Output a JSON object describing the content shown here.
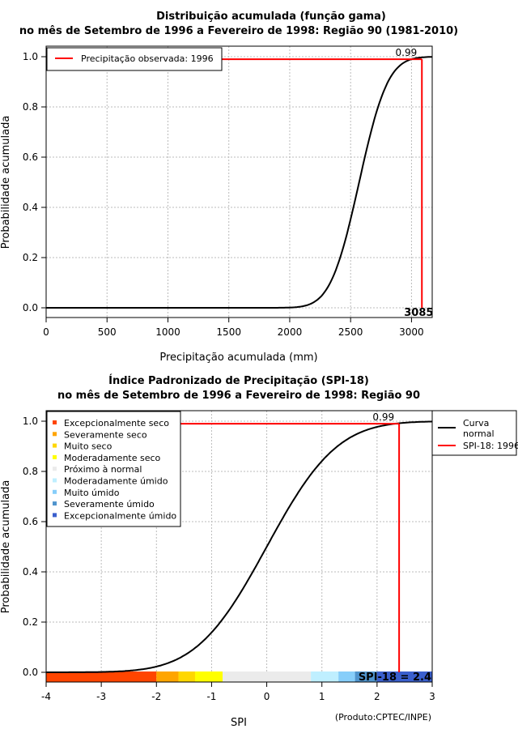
{
  "chart_data": [
    {
      "type": "line",
      "title": [
        "Distribuição acumulada (função gama)",
        "no mês de Setembro de 1996 a Fevereiro de 1998: Região 90 (1981-2010)"
      ],
      "xlabel": "Precipitação acumulada (mm)",
      "ylabel": "Probabilidade acumulada",
      "xlim": [
        0,
        3170
      ],
      "ylim": [
        0,
        1
      ],
      "xticks": [
        0,
        500,
        1000,
        1500,
        2000,
        2500,
        3000
      ],
      "yticks": [
        "0.0",
        "0.2",
        "0.4",
        "0.6",
        "0.8",
        "1.0"
      ],
      "ytick_extra": "0.99",
      "curve": {
        "distribution": "gamma (approx.)",
        "mean": 2570,
        "sd": 185
      },
      "observed": {
        "x": 3085.3,
        "p": 0.99,
        "label": "3085.3"
      },
      "legend": {
        "position": "top-left",
        "entries": [
          {
            "label": "Precipitação observada: 1996",
            "color": "#ff0000"
          }
        ]
      },
      "grid": true
    },
    {
      "type": "line",
      "title": [
        "Índice Padronizado de Precipitação (SPI-18)",
        "no mês de Setembro de 1996 a Fevereiro de 1998: Região 90"
      ],
      "xlabel": "SPI",
      "ylabel": "Probabilidade acumulada",
      "xlim": [
        -4,
        3
      ],
      "ylim": [
        0,
        1
      ],
      "xticks": [
        -4,
        -3,
        -2,
        -1,
        0,
        1,
        2,
        3
      ],
      "yticks": [
        "0.0",
        "0.2",
        "0.4",
        "0.6",
        "0.8",
        "1.0"
      ],
      "ytick_extra": "0.99",
      "curve": {
        "distribution": "normal",
        "mean": 0,
        "sd": 1
      },
      "observed": {
        "x": 2.4,
        "p": 0.99,
        "label": "SPI-18 = 2.4"
      },
      "legend": {
        "position": "outside-top-right",
        "entries": [
          {
            "label": "Curva",
            "label2": "normal",
            "color": "#000000"
          },
          {
            "label": "SPI-18: 1996",
            "color": "#ff0000"
          }
        ]
      },
      "categories": [
        {
          "label": "Excepcionalmente seco",
          "from": -4,
          "to": -2,
          "color": "#ff4500"
        },
        {
          "label": "Severamente seco",
          "from": -2,
          "to": -1.6,
          "color": "#ffa500"
        },
        {
          "label": "Muito seco",
          "from": -1.6,
          "to": -1.3,
          "color": "#ffd700"
        },
        {
          "label": "Moderadamente seco",
          "from": -1.3,
          "to": -0.8,
          "color": "#ffff00"
        },
        {
          "label": "Próximo à normal",
          "from": -0.8,
          "to": 0.8,
          "color": "#ebebeb"
        },
        {
          "label": "Moderadamente úmido",
          "from": 0.8,
          "to": 1.3,
          "color": "#bfefff"
        },
        {
          "label": "Muito úmido",
          "from": 1.3,
          "to": 1.6,
          "color": "#87cefa"
        },
        {
          "label": "Severamente úmido",
          "from": 1.6,
          "to": 2,
          "color": "#4f94cd"
        },
        {
          "label": "Excepcionalmente úmido",
          "from": 2,
          "to": 3,
          "color": "#3a5fcd"
        }
      ],
      "grid": true
    }
  ],
  "footer": "(Produto:CPTEC/INPE)"
}
